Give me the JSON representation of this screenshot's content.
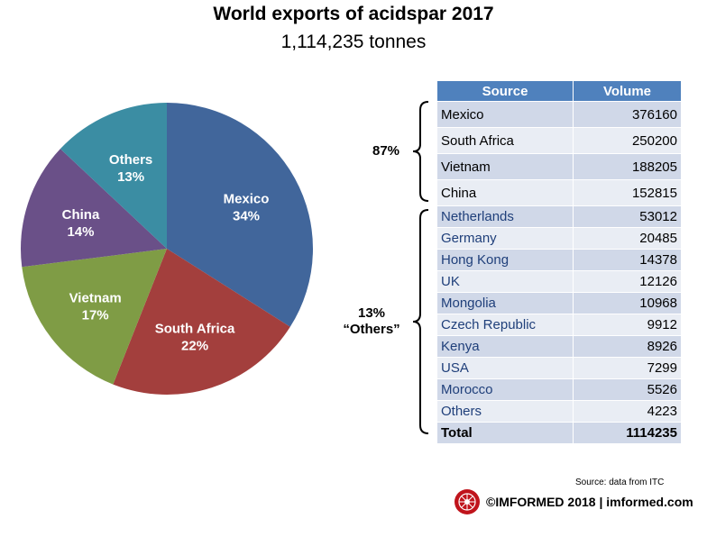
{
  "title": "World exports of acidspar 2017",
  "subtitle": "1,114,235 tonnes",
  "chart_data": {
    "type": "pie",
    "slices": [
      {
        "label": "Mexico",
        "pct_label": "34%",
        "value": 34,
        "color": "#41669b"
      },
      {
        "label": "South Africa",
        "pct_label": "22%",
        "value": 22,
        "color": "#a33f3d"
      },
      {
        "label": "Vietnam",
        "pct_label": "17%",
        "value": 17,
        "color": "#7f9c45"
      },
      {
        "label": "China",
        "pct_label": "14%",
        "value": 14,
        "color": "#6a5088"
      },
      {
        "label": "Others",
        "pct_label": "13%",
        "value": 13,
        "color": "#3b8da3"
      }
    ]
  },
  "table": {
    "headers": [
      "Source",
      "Volume"
    ],
    "major_rows": [
      {
        "name": "Mexico",
        "value": "376160"
      },
      {
        "name": "South Africa",
        "value": "250200"
      },
      {
        "name": "Vietnam",
        "value": "188205"
      },
      {
        "name": "China",
        "value": "152815"
      }
    ],
    "other_rows": [
      {
        "name": "Netherlands",
        "value": "53012"
      },
      {
        "name": "Germany",
        "value": "20485"
      },
      {
        "name": "Hong Kong",
        "value": "14378"
      },
      {
        "name": "UK",
        "value": "12126"
      },
      {
        "name": "Mongolia",
        "value": "10968"
      },
      {
        "name": "Czech Republic",
        "value": "9912"
      },
      {
        "name": "Kenya",
        "value": "8926"
      },
      {
        "name": "USA",
        "value": "7299"
      },
      {
        "name": "Morocco",
        "value": "5526"
      },
      {
        "name": "Others",
        "value": "4223"
      }
    ],
    "total": {
      "name": "Total",
      "value": "1114235"
    }
  },
  "groups": {
    "major_pct": "87%",
    "others_pct": "13%",
    "others_label": "“Others”"
  },
  "source_note": "Source: data from ITC",
  "footer": "©IMFORMED 2018  | imformed.com"
}
